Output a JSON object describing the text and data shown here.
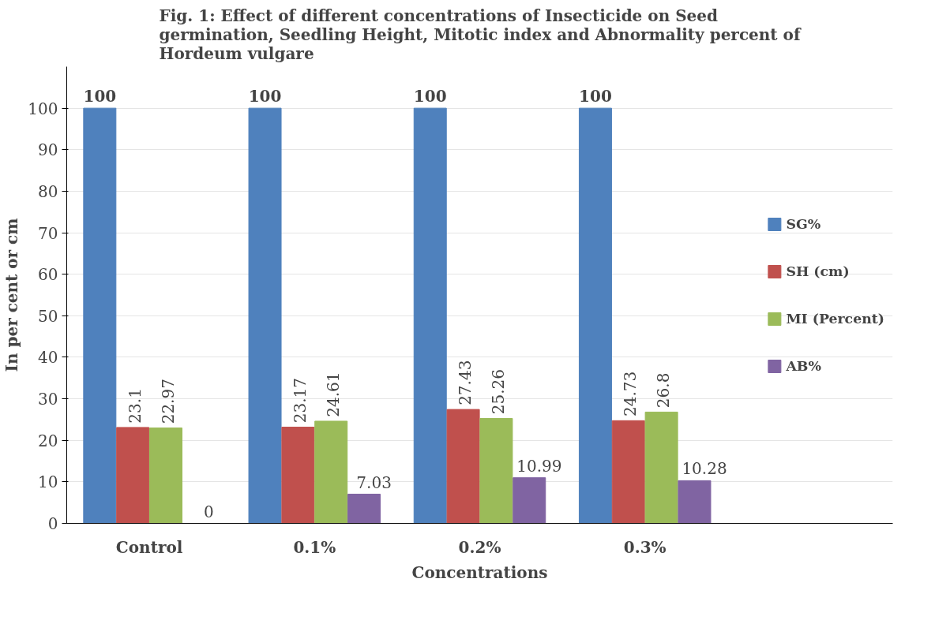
{
  "chart_data": {
    "type": "bar",
    "title": "Fig. 1: Effect of different concentrations of Insecticide on Seed germination, Seedling Height, Mitotic index and Abnormality percent of Hordeum vulgare",
    "xlabel": "Concentrations",
    "ylabel": "In per cent or cm",
    "categories": [
      "Control",
      "0.1%",
      "0.2%",
      "0.3%"
    ],
    "series": [
      {
        "name": "SG%",
        "color": "#4f81bd",
        "values": [
          100,
          100,
          100,
          100
        ]
      },
      {
        "name": "SH (cm)",
        "color": "#c0504d",
        "values": [
          23.1,
          23.17,
          27.43,
          24.73
        ]
      },
      {
        "name": "MI (Percent)",
        "color": "#9bbb59",
        "values": [
          22.97,
          24.61,
          25.26,
          26.8
        ]
      },
      {
        "name": "AB%",
        "color": "#8064a2",
        "values": [
          0,
          7.03,
          10.99,
          10.28
        ]
      }
    ],
    "ylim": [
      0,
      110
    ],
    "yticks": [
      0,
      10,
      20,
      30,
      40,
      50,
      60,
      70,
      80,
      90,
      100
    ],
    "grid": "y",
    "legend": "right",
    "data_labels": true
  }
}
